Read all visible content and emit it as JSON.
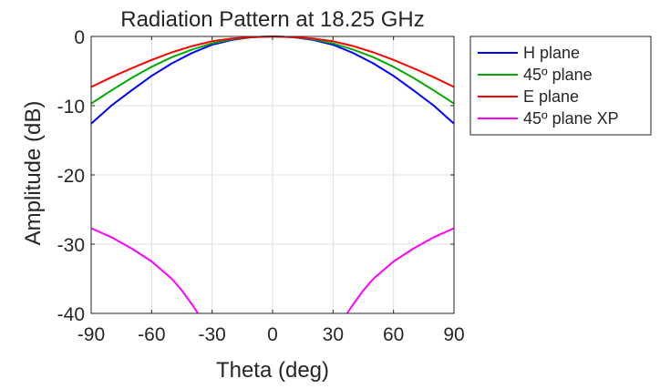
{
  "chart_data": {
    "type": "line",
    "title": "Radiation Pattern at 18.25 GHz",
    "xlabel": "Theta (deg)",
    "ylabel": "Amplitude (dB)",
    "xlim": [
      -90,
      90
    ],
    "ylim": [
      -40,
      0
    ],
    "xticks": [
      -90,
      -60,
      -30,
      0,
      30,
      60,
      90
    ],
    "yticks": [
      0,
      -10,
      -20,
      -30,
      -40
    ],
    "xtick_labels": [
      "-90",
      "-60",
      "-30",
      "0",
      "30",
      "60",
      "90"
    ],
    "ytick_labels": [
      "0",
      "-10",
      "-20",
      "-30",
      "-40"
    ],
    "grid": true,
    "legend_position": "outside-right-top",
    "x": [
      -90,
      -80,
      -70,
      -60,
      -50,
      -40,
      -30,
      -20,
      -10,
      0,
      10,
      20,
      30,
      40,
      50,
      60,
      70,
      80,
      90
    ],
    "series": [
      {
        "name": "H plane",
        "color": "#0000ff",
        "values": [
          -12.6,
          -10.0,
          -7.8,
          -5.7,
          -3.9,
          -2.4,
          -1.2,
          -0.5,
          -0.1,
          0,
          -0.1,
          -0.5,
          -1.2,
          -2.4,
          -3.9,
          -5.7,
          -7.8,
          -10.0,
          -12.6
        ]
      },
      {
        "name": "45º plane",
        "color": "#00aa00",
        "values": [
          -9.7,
          -7.8,
          -6.0,
          -4.4,
          -3.0,
          -1.9,
          -1.0,
          -0.4,
          -0.1,
          0,
          -0.1,
          -0.4,
          -1.0,
          -1.9,
          -3.0,
          -4.4,
          -6.0,
          -7.8,
          -9.7
        ]
      },
      {
        "name": "E plane",
        "color": "#ff0000",
        "values": [
          -7.3,
          -5.9,
          -4.6,
          -3.4,
          -2.3,
          -1.4,
          -0.7,
          -0.3,
          -0.1,
          0,
          -0.1,
          -0.3,
          -0.7,
          -1.4,
          -2.3,
          -3.4,
          -4.6,
          -5.9,
          -7.3
        ]
      },
      {
        "name": "45º plane XP",
        "color": "#ff00ff",
        "x": [
          -90,
          -80,
          -70,
          -60,
          -50,
          -45,
          -40,
          -37,
          37,
          40,
          45,
          50,
          60,
          70,
          80,
          90
        ],
        "values": [
          -27.7,
          -29.0,
          -30.6,
          -32.5,
          -35.0,
          -36.7,
          -38.7,
          -40.0,
          -40.0,
          -38.7,
          -36.7,
          -35.0,
          -32.5,
          -30.6,
          -29.0,
          -27.7
        ],
        "segments": [
          [
            0,
            7
          ],
          [
            8,
            15
          ]
        ]
      }
    ]
  }
}
